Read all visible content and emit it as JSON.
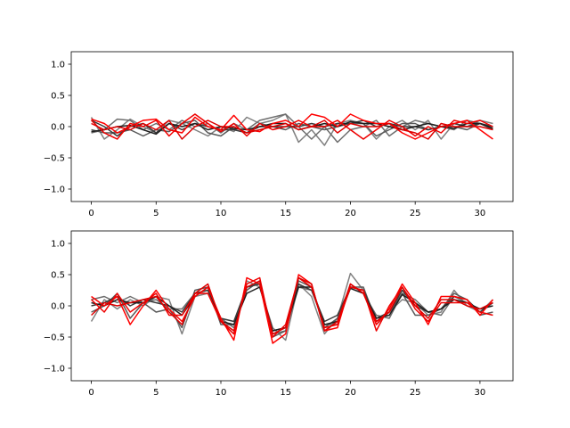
{
  "chart_data": [
    {
      "type": "line",
      "ylim": [
        -1.2,
        1.2
      ],
      "xlim": [
        -1.55,
        32.55
      ],
      "x_ticks": [
        0,
        5,
        10,
        15,
        20,
        25,
        30
      ],
      "y_ticks": [
        -1.0,
        -0.5,
        0.0,
        0.5,
        1.0
      ],
      "x_tick_labels": [
        "0",
        "5",
        "10",
        "15",
        "20",
        "25",
        "30"
      ],
      "y_tick_labels": [
        "−1.0",
        "−0.5",
        "0.0",
        "0.5",
        "1.0"
      ],
      "grid": false,
      "x": [
        0,
        1,
        2,
        3,
        4,
        5,
        6,
        7,
        8,
        9,
        10,
        11,
        12,
        13,
        14,
        15,
        16,
        17,
        18,
        19,
        20,
        21,
        22,
        23,
        24,
        25,
        26,
        27,
        28,
        29,
        30,
        31
      ],
      "series": [
        {
          "color": "#808080",
          "values": [
            0.15,
            -0.2,
            -0.05,
            0.12,
            0.0,
            -0.1,
            0.1,
            0.05,
            -0.05,
            -0.15,
            0.0,
            -0.08,
            0.15,
            0.05,
            0.1,
            0.2,
            -0.25,
            -0.05,
            -0.3,
            0.05,
            0.1,
            0.05,
            -0.2,
            0.0,
            0.1,
            -0.05,
            0.1,
            -0.2,
            0.05,
            0.0,
            0.1,
            0.05
          ]
        },
        {
          "color": "#6e6e6e",
          "values": [
            -0.1,
            -0.05,
            0.12,
            0.1,
            -0.05,
            0.05,
            -0.05,
            0.1,
            0.0,
            0.05,
            -0.1,
            0.05,
            -0.05,
            0.1,
            0.15,
            0.2,
            0.0,
            -0.2,
            0.0,
            -0.25,
            -0.05,
            0.0,
            0.1,
            -0.15,
            0.0,
            0.1,
            0.05,
            0.0,
            -0.05,
            0.1,
            0.05,
            0.0
          ]
        },
        {
          "color": "#595959",
          "values": [
            -0.05,
            -0.1,
            -0.1,
            -0.05,
            -0.15,
            -0.05,
            -0.08,
            0.05,
            0.1,
            -0.1,
            -0.15,
            0.0,
            -0.1,
            0.05,
            0.0,
            -0.05,
            0.05,
            0.0,
            -0.05,
            0.0,
            0.05,
            0.05,
            -0.15,
            -0.05,
            0.05,
            0.05,
            -0.05,
            0.0,
            0.0,
            -0.05,
            0.05,
            -0.05
          ]
        },
        {
          "color": "#3a3a3a",
          "values": [
            0.1,
            0.0,
            -0.15,
            0.0,
            0.05,
            -0.1,
            0.05,
            -0.05,
            0.05,
            0.0,
            -0.05,
            -0.05,
            -0.1,
            0.0,
            0.0,
            0.0,
            0.0,
            0.05,
            0.0,
            0.05,
            0.05,
            0.1,
            0.0,
            0.05,
            0.0,
            0.0,
            -0.05,
            0.0,
            0.05,
            0.0,
            0.05,
            0.0
          ]
        },
        {
          "color": "#1f1f1f",
          "values": [
            -0.08,
            -0.05,
            0.0,
            0.02,
            -0.05,
            -0.12,
            0.05,
            0.0,
            0.05,
            -0.05,
            0.0,
            -0.03,
            -0.05,
            0.0,
            0.05,
            0.05,
            -0.05,
            0.0,
            0.05,
            0.0,
            0.08,
            0.05,
            0.05,
            0.0,
            -0.05,
            0.0,
            0.05,
            0.0,
            -0.03,
            0.05,
            0.05,
            -0.03
          ]
        },
        {
          "color": "#ff0000",
          "values": [
            0.12,
            0.05,
            -0.1,
            0.0,
            0.1,
            0.12,
            -0.05,
            -0.1,
            0.15,
            0.0,
            -0.05,
            0.18,
            -0.05,
            -0.08,
            0.05,
            0.1,
            0.0,
            0.2,
            0.15,
            0.0,
            0.2,
            0.1,
            0.05,
            0.05,
            -0.1,
            -0.2,
            -0.1,
            0.0,
            0.05,
            0.1,
            -0.05,
            -0.2
          ]
        },
        {
          "color": "#ee0000",
          "values": [
            0.1,
            -0.1,
            -0.2,
            0.05,
            0.0,
            0.1,
            -0.15,
            0.05,
            0.2,
            0.05,
            -0.08,
            0.05,
            -0.15,
            0.05,
            -0.05,
            0.0,
            0.1,
            0.0,
            0.0,
            0.1,
            -0.05,
            -0.2,
            -0.05,
            0.1,
            0.0,
            -0.15,
            0.0,
            -0.1,
            0.1,
            0.05,
            0.1,
            0.0
          ]
        },
        {
          "color": "#dd0000",
          "values": [
            0.05,
            -0.05,
            0.0,
            -0.05,
            0.05,
            -0.05,
            0.1,
            -0.2,
            0.0,
            0.1,
            0.0,
            0.0,
            -0.1,
            -0.05,
            0.0,
            0.05,
            -0.05,
            0.0,
            0.1,
            -0.1,
            0.05,
            0.0,
            0.0,
            0.05,
            -0.05,
            -0.1,
            -0.2,
            0.05,
            0.0,
            0.0,
            0.0,
            -0.05
          ]
        }
      ]
    },
    {
      "type": "line",
      "ylim": [
        -1.2,
        1.2
      ],
      "xlim": [
        -1.55,
        32.55
      ],
      "x_ticks": [
        0,
        5,
        10,
        15,
        20,
        25,
        30
      ],
      "y_ticks": [
        -1.0,
        -0.5,
        0.0,
        0.5,
        1.0
      ],
      "x_tick_labels": [
        "0",
        "5",
        "10",
        "15",
        "20",
        "25",
        "30"
      ],
      "y_tick_labels": [
        "−1.0",
        "−0.5",
        "0.0",
        "0.5",
        "1.0"
      ],
      "grid": false,
      "x": [
        0,
        1,
        2,
        3,
        4,
        5,
        6,
        7,
        8,
        9,
        10,
        11,
        12,
        13,
        14,
        15,
        16,
        17,
        18,
        19,
        20,
        21,
        22,
        23,
        24,
        25,
        26,
        27,
        28,
        29,
        30,
        31
      ],
      "series": [
        {
          "color": "#808080",
          "values": [
            -0.25,
            0.1,
            -0.05,
            0.1,
            0.0,
            0.15,
            0.1,
            -0.45,
            0.15,
            0.2,
            -0.25,
            -0.45,
            0.4,
            0.3,
            -0.35,
            -0.55,
            0.35,
            0.15,
            -0.45,
            -0.2,
            0.52,
            0.25,
            -0.3,
            -0.1,
            0.1,
            0.05,
            -0.15,
            -0.1,
            0.25,
            0.0,
            -0.1,
            0.1
          ]
        },
        {
          "color": "#6e6e6e",
          "values": [
            0.1,
            0.15,
            0.05,
            0.15,
            0.05,
            0.1,
            -0.05,
            -0.05,
            0.2,
            0.25,
            -0.2,
            -0.35,
            0.3,
            0.35,
            -0.45,
            -0.4,
            0.3,
            0.25,
            -0.3,
            -0.3,
            0.35,
            0.2,
            -0.15,
            -0.2,
            0.2,
            0.1,
            -0.1,
            -0.15,
            0.15,
            0.05,
            -0.05,
            0.05
          ]
        },
        {
          "color": "#595959",
          "values": [
            -0.1,
            0.0,
            0.2,
            -0.2,
            0.05,
            -0.1,
            -0.05,
            -0.35,
            0.25,
            0.3,
            -0.3,
            -0.3,
            0.25,
            0.4,
            -0.5,
            -0.4,
            0.4,
            0.3,
            -0.35,
            -0.2,
            0.3,
            0.3,
            -0.25,
            -0.1,
            0.2,
            -0.15,
            -0.15,
            -0.05,
            0.2,
            0.1,
            -0.15,
            -0.1
          ]
        },
        {
          "color": "#3a3a3a",
          "values": [
            0.0,
            0.05,
            0.15,
            0.0,
            0.1,
            0.05,
            0.0,
            -0.1,
            0.2,
            0.25,
            -0.2,
            -0.25,
            0.3,
            0.35,
            -0.4,
            -0.35,
            0.35,
            0.25,
            -0.25,
            -0.15,
            0.3,
            0.25,
            -0.2,
            -0.1,
            0.25,
            0.0,
            -0.1,
            -0.05,
            0.15,
            0.1,
            -0.1,
            0.05
          ]
        },
        {
          "color": "#1f1f1f",
          "values": [
            0.05,
            0.0,
            0.1,
            0.05,
            0.05,
            0.15,
            0.0,
            -0.15,
            0.15,
            0.3,
            -0.25,
            -0.3,
            0.2,
            0.3,
            -0.4,
            -0.35,
            0.3,
            0.3,
            -0.3,
            -0.25,
            0.28,
            0.2,
            -0.2,
            -0.15,
            0.18,
            0.05,
            -0.1,
            -0.05,
            0.1,
            0.05,
            -0.05,
            0.0
          ]
        },
        {
          "color": "#ff0000",
          "values": [
            0.15,
            0.0,
            0.15,
            -0.3,
            0.0,
            0.25,
            -0.05,
            -0.25,
            0.15,
            0.3,
            -0.2,
            -0.55,
            0.45,
            0.35,
            -0.6,
            -0.45,
            0.5,
            0.35,
            -0.4,
            -0.35,
            0.35,
            0.2,
            -0.3,
            -0.05,
            0.35,
            0.05,
            -0.3,
            0.15,
            0.15,
            0.1,
            -0.15,
            0.1
          ]
        },
        {
          "color": "#ee0000",
          "values": [
            0.1,
            -0.1,
            0.2,
            -0.1,
            0.05,
            0.2,
            -0.15,
            -0.15,
            0.2,
            0.2,
            -0.25,
            -0.45,
            0.35,
            0.45,
            -0.5,
            -0.3,
            0.45,
            0.3,
            -0.35,
            -0.3,
            0.3,
            0.25,
            -0.4,
            0.0,
            0.3,
            -0.05,
            -0.25,
            0.05,
            0.05,
            0.05,
            -0.1,
            -0.15
          ]
        },
        {
          "color": "#dd0000",
          "values": [
            -0.15,
            0.05,
            0.0,
            0.05,
            0.1,
            0.15,
            -0.1,
            -0.3,
            0.2,
            0.35,
            -0.25,
            -0.4,
            0.3,
            0.4,
            -0.45,
            -0.35,
            0.45,
            0.35,
            -0.4,
            -0.25,
            0.35,
            0.2,
            -0.25,
            -0.1,
            0.3,
            0.0,
            -0.2,
            0.1,
            0.1,
            0.0,
            -0.05,
            0.05
          ]
        }
      ]
    }
  ]
}
